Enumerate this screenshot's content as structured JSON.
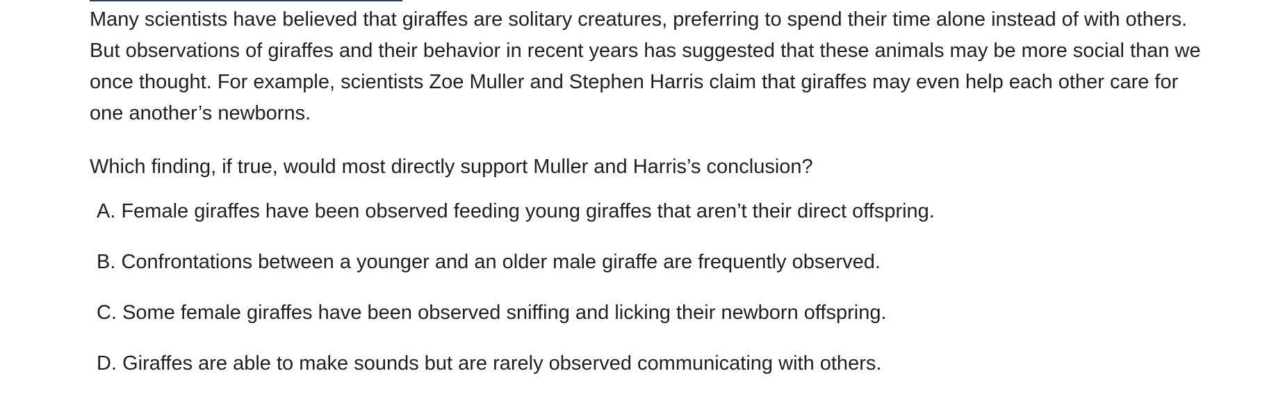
{
  "passage": {
    "text": "Many scientists have believed that giraffes are solitary creatures, preferring to spend their time alone instead of with others. But observations of giraffes and their behavior in recent years has suggested that these animals may be more social than we once thought. For example, scientists Zoe Muller and Stephen Harris claim that giraffes may even help each other care for one another’s newborns."
  },
  "question": {
    "text": "Which finding, if true, would most directly support Muller and Harris’s  conclusion?"
  },
  "choices": [
    {
      "letter": "A.",
      "text": "Female giraffes have been observed feeding young giraffes that aren’t their direct offspring."
    },
    {
      "letter": "B.",
      "text": "Confrontations between a younger and an older male giraffe are frequently observed."
    },
    {
      "letter": "C.",
      "text": "Some female giraffes have been observed sniffing and licking their newborn offspring."
    },
    {
      "letter": "D.",
      "text": "Giraffes are able to make sounds but are rarely observed communicating with others."
    }
  ]
}
